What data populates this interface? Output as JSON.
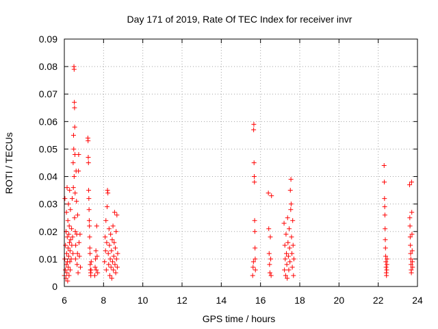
{
  "chart_data": {
    "type": "scatter",
    "title": "Day 171 of 2019, Rate Of TEC Index for receiver invr",
    "xlabel": "GPS time / hours",
    "ylabel": "ROTI / TECUs",
    "xlim": [
      6,
      24
    ],
    "ylim": [
      0,
      0.09
    ],
    "xticks": [
      6,
      8,
      10,
      12,
      14,
      16,
      18,
      20,
      22,
      24
    ],
    "yticks": [
      0,
      0.01,
      0.02,
      0.03,
      0.04,
      0.05,
      0.06,
      0.07,
      0.08,
      0.09
    ],
    "ytick_labels": [
      "0",
      "0.01",
      "0.02",
      "0.03",
      "0.04",
      "0.05",
      "0.06",
      "0.07",
      "0.08",
      "0.09"
    ],
    "xtick_labels": [
      "6",
      "8",
      "10",
      "12",
      "14",
      "16",
      "18",
      "20",
      "22",
      "24"
    ],
    "grid": true,
    "marker": "+",
    "color": "#ff0000",
    "series": [
      {
        "name": "ROTI",
        "points": [
          [
            6.0,
            0.004
          ],
          [
            6.02,
            0.01
          ],
          [
            6.03,
            0.032
          ],
          [
            6.05,
            0.006
          ],
          [
            6.06,
            0.015
          ],
          [
            6.08,
            0.003
          ],
          [
            6.09,
            0.02
          ],
          [
            6.1,
            0.008
          ],
          [
            6.11,
            0.027
          ],
          [
            6.12,
            0.012
          ],
          [
            6.13,
            0.005
          ],
          [
            6.14,
            0.036
          ],
          [
            6.15,
            0.018
          ],
          [
            6.16,
            0.009
          ],
          [
            6.17,
            0.002
          ],
          [
            6.18,
            0.024
          ],
          [
            6.19,
            0.014
          ],
          [
            6.2,
            0.007
          ],
          [
            6.21,
            0.03
          ],
          [
            6.22,
            0.011
          ],
          [
            6.23,
            0.019
          ],
          [
            6.24,
            0.004
          ],
          [
            6.25,
            0.022
          ],
          [
            6.26,
            0.016
          ],
          [
            6.27,
            0.035
          ],
          [
            6.28,
            0.009
          ],
          [
            6.29,
            0.013
          ],
          [
            6.3,
            0.006
          ],
          [
            6.31,
            0.028
          ],
          [
            6.32,
            0.017
          ],
          [
            6.35,
            0.01
          ],
          [
            6.37,
            0.021
          ],
          [
            6.38,
            0.015
          ],
          [
            6.4,
            0.032
          ],
          [
            6.42,
            0.018
          ],
          [
            6.44,
            0.012
          ],
          [
            6.45,
            0.045
          ],
          [
            6.46,
            0.036
          ],
          [
            6.47,
            0.055
          ],
          [
            6.48,
            0.05
          ],
          [
            6.49,
            0.08
          ],
          [
            6.5,
            0.079
          ],
          [
            6.5,
            0.04
          ],
          [
            6.51,
            0.067
          ],
          [
            6.52,
            0.065
          ],
          [
            6.52,
            0.025
          ],
          [
            6.53,
            0.058
          ],
          [
            6.54,
            0.048
          ],
          [
            6.55,
            0.034
          ],
          [
            6.56,
            0.02
          ],
          [
            6.57,
            0.01
          ],
          [
            6.58,
            0.015
          ],
          [
            6.6,
            0.042
          ],
          [
            6.62,
            0.031
          ],
          [
            6.63,
            0.019
          ],
          [
            6.65,
            0.008
          ],
          [
            6.67,
            0.012
          ],
          [
            6.68,
            0.026
          ],
          [
            6.7,
            0.005
          ],
          [
            6.72,
            0.042
          ],
          [
            6.73,
            0.048
          ],
          [
            6.75,
            0.016
          ],
          [
            6.77,
            0.011
          ],
          [
            6.8,
            0.019
          ],
          [
            6.82,
            0.007
          ],
          [
            7.2,
            0.054
          ],
          [
            7.21,
            0.053
          ],
          [
            7.22,
            0.047
          ],
          [
            7.23,
            0.045
          ],
          [
            7.24,
            0.035
          ],
          [
            7.25,
            0.032
          ],
          [
            7.26,
            0.028
          ],
          [
            7.27,
            0.024
          ],
          [
            7.28,
            0.022
          ],
          [
            7.29,
            0.018
          ],
          [
            7.3,
            0.014
          ],
          [
            7.31,
            0.012
          ],
          [
            7.32,
            0.008
          ],
          [
            7.33,
            0.006
          ],
          [
            7.34,
            0.005
          ],
          [
            7.35,
            0.004
          ],
          [
            7.36,
            0.006
          ],
          [
            7.37,
            0.009
          ],
          [
            7.55,
            0.004
          ],
          [
            7.57,
            0.007
          ],
          [
            7.59,
            0.01
          ],
          [
            7.61,
            0.013
          ],
          [
            7.63,
            0.006
          ],
          [
            7.65,
            0.022
          ],
          [
            7.67,
            0.011
          ],
          [
            7.7,
            0.005
          ],
          [
            8.05,
            0.009
          ],
          [
            8.08,
            0.018
          ],
          [
            8.1,
            0.013
          ],
          [
            8.12,
            0.024
          ],
          [
            8.14,
            0.006
          ],
          [
            8.16,
            0.016
          ],
          [
            8.18,
            0.029
          ],
          [
            8.2,
            0.035
          ],
          [
            8.22,
            0.034
          ],
          [
            8.24,
            0.012
          ],
          [
            8.26,
            0.008
          ],
          [
            8.28,
            0.021
          ],
          [
            8.3,
            0.015
          ],
          [
            8.32,
            0.004
          ],
          [
            8.34,
            0.01
          ],
          [
            8.36,
            0.019
          ],
          [
            8.38,
            0.007
          ],
          [
            8.4,
            0.013
          ],
          [
            8.42,
            0.003
          ],
          [
            8.44,
            0.017
          ],
          [
            8.46,
            0.009
          ],
          [
            8.48,
            0.022
          ],
          [
            8.5,
            0.006
          ],
          [
            8.52,
            0.011
          ],
          [
            8.54,
            0.016
          ],
          [
            8.56,
            0.027
          ],
          [
            8.58,
            0.008
          ],
          [
            8.6,
            0.014
          ],
          [
            8.62,
            0.005
          ],
          [
            8.64,
            0.02
          ],
          [
            8.66,
            0.01
          ],
          [
            8.68,
            0.026
          ],
          [
            8.7,
            0.007
          ],
          [
            8.72,
            0.012
          ],
          [
            15.6,
            0.004
          ],
          [
            15.62,
            0.007
          ],
          [
            15.64,
            0.009
          ],
          [
            15.65,
            0.057
          ],
          [
            15.66,
            0.059
          ],
          [
            15.67,
            0.045
          ],
          [
            15.68,
            0.04
          ],
          [
            15.69,
            0.038
          ],
          [
            15.7,
            0.024
          ],
          [
            15.71,
            0.02
          ],
          [
            15.72,
            0.014
          ],
          [
            15.73,
            0.01
          ],
          [
            15.74,
            0.006
          ],
          [
            16.4,
            0.034
          ],
          [
            16.42,
            0.021
          ],
          [
            16.44,
            0.012
          ],
          [
            16.46,
            0.008
          ],
          [
            16.48,
            0.005
          ],
          [
            16.5,
            0.018
          ],
          [
            16.52,
            0.01
          ],
          [
            16.54,
            0.004
          ],
          [
            16.56,
            0.033
          ],
          [
            17.2,
            0.023
          ],
          [
            17.22,
            0.006
          ],
          [
            17.24,
            0.015
          ],
          [
            17.26,
            0.01
          ],
          [
            17.28,
            0.004
          ],
          [
            17.3,
            0.019
          ],
          [
            17.32,
            0.012
          ],
          [
            17.34,
            0.008
          ],
          [
            17.36,
            0.003
          ],
          [
            17.38,
            0.025
          ],
          [
            17.4,
            0.016
          ],
          [
            17.42,
            0.011
          ],
          [
            17.44,
            0.006
          ],
          [
            17.46,
            0.021
          ],
          [
            17.48,
            0.014
          ],
          [
            17.5,
            0.009
          ],
          [
            17.52,
            0.035
          ],
          [
            17.54,
            0.028
          ],
          [
            17.55,
            0.039
          ],
          [
            17.56,
            0.03
          ],
          [
            17.58,
            0.018
          ],
          [
            17.6,
            0.012
          ],
          [
            17.62,
            0.007
          ],
          [
            17.64,
            0.024
          ],
          [
            17.66,
            0.015
          ],
          [
            17.68,
            0.004
          ],
          [
            17.7,
            0.01
          ],
          [
            22.3,
            0.044
          ],
          [
            22.31,
            0.038
          ],
          [
            22.32,
            0.032
          ],
          [
            22.33,
            0.029
          ],
          [
            22.34,
            0.026
          ],
          [
            22.35,
            0.021
          ],
          [
            22.36,
            0.017
          ],
          [
            22.37,
            0.014
          ],
          [
            22.38,
            0.011
          ],
          [
            22.39,
            0.009
          ],
          [
            22.4,
            0.007
          ],
          [
            22.41,
            0.005
          ],
          [
            22.42,
            0.004
          ],
          [
            22.43,
            0.006
          ],
          [
            22.44,
            0.008
          ],
          [
            22.45,
            0.01
          ],
          [
            23.6,
            0.037
          ],
          [
            23.61,
            0.025
          ],
          [
            23.62,
            0.022
          ],
          [
            23.63,
            0.018
          ],
          [
            23.64,
            0.015
          ],
          [
            23.65,
            0.012
          ],
          [
            23.66,
            0.01
          ],
          [
            23.67,
            0.008
          ],
          [
            23.68,
            0.006
          ],
          [
            23.69,
            0.005
          ],
          [
            23.7,
            0.038
          ],
          [
            23.71,
            0.027
          ],
          [
            23.72,
            0.019
          ],
          [
            23.73,
            0.013
          ],
          [
            23.74,
            0.009
          ],
          [
            23.75,
            0.007
          ]
        ]
      }
    ]
  }
}
